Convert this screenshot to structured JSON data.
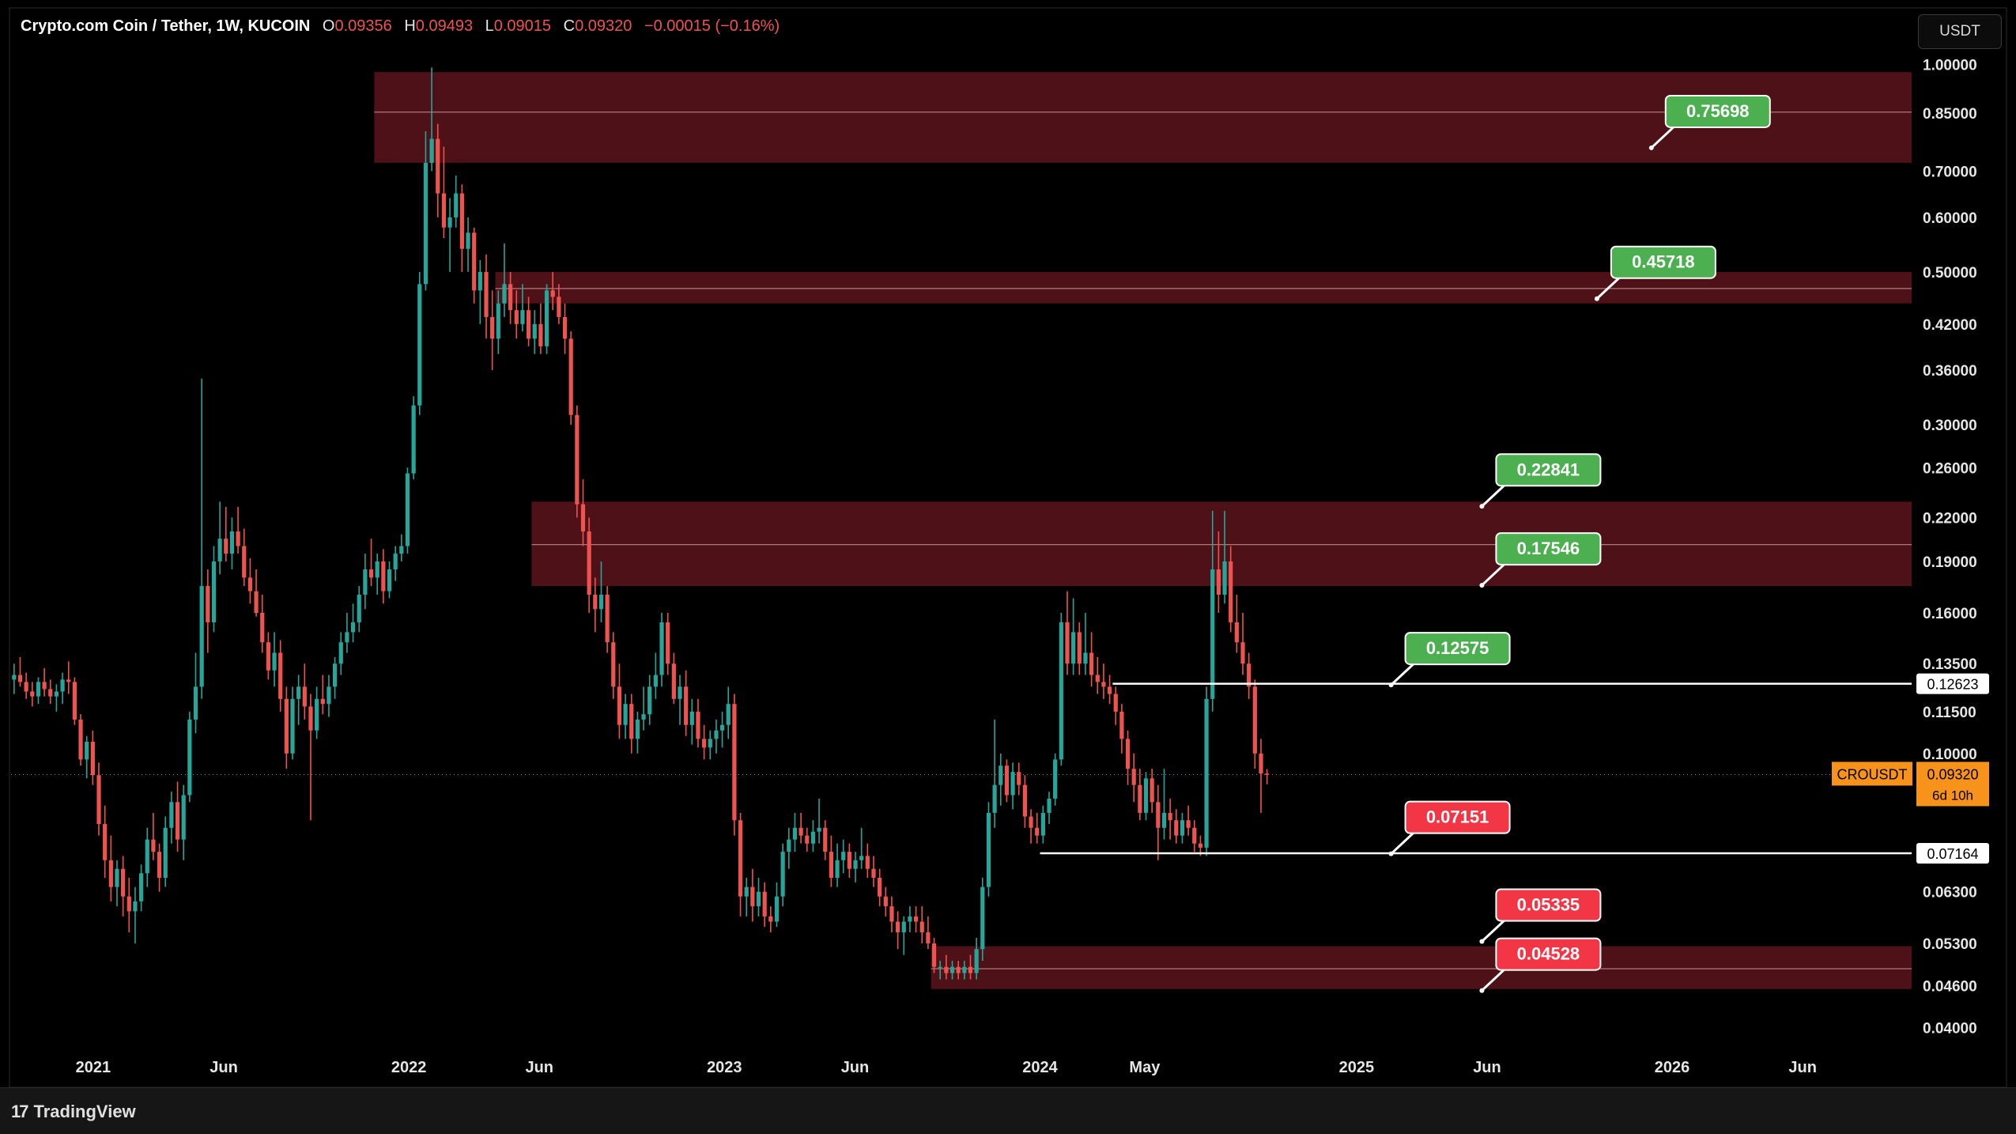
{
  "header": {
    "symbol": "Crypto.com Coin / Tether, 1W, KUCOIN",
    "open_label": "O",
    "open": "0.09356",
    "high_label": "H",
    "high": "0.09493",
    "low_label": "L",
    "low": "0.09015",
    "close_label": "C",
    "close": "0.09320",
    "change": "−0.00015 (−0.16%)"
  },
  "currency_button": "USDT",
  "footer": {
    "logo_mark": "17",
    "brand": "TradingView"
  },
  "colors": {
    "up": "#26a69a",
    "down": "#ef5350",
    "zone": "#4d1117",
    "zone_line": "#b07a7a",
    "green_label": "#4caf50",
    "red_label": "#f23645",
    "current": "#f7931a"
  },
  "chart_data": {
    "type": "candlestick",
    "title": "Crypto.com Coin / Tether, 1W, KUCOIN",
    "y_scale": "log",
    "ylim": [
      0.035,
      1.07
    ],
    "x_range": [
      "2020-09-28",
      "2026-10-05"
    ],
    "y_ticks": [
      "1.00000",
      "0.85000",
      "0.70000",
      "0.60000",
      "0.50000",
      "0.42000",
      "0.36000",
      "0.30000",
      "0.26000",
      "0.22000",
      "0.19000",
      "0.16000",
      "0.13500",
      "0.11500",
      "0.10000",
      "0.06300",
      "0.05300",
      "0.04600",
      "0.04000"
    ],
    "x_ticks": [
      {
        "label": "2021",
        "date": "2021-01-01"
      },
      {
        "label": "Jun",
        "date": "2021-06-01"
      },
      {
        "label": "2022",
        "date": "2022-01-01"
      },
      {
        "label": "Jun",
        "date": "2022-06-01"
      },
      {
        "label": "2023",
        "date": "2023-01-01"
      },
      {
        "label": "Jun",
        "date": "2023-06-01"
      },
      {
        "label": "2024",
        "date": "2024-01-01"
      },
      {
        "label": "May",
        "date": "2024-05-01"
      },
      {
        "label": "2025",
        "date": "2025-01-01"
      },
      {
        "label": "Jun",
        "date": "2025-06-01"
      },
      {
        "label": "2026",
        "date": "2026-01-01"
      },
      {
        "label": "Jun",
        "date": "2026-06-01"
      }
    ],
    "zones": [
      {
        "top": 0.975,
        "bottom": 0.72,
        "mid": 0.853,
        "start": "2021-11-22",
        "end": "2026-10-05"
      },
      {
        "top": 0.5,
        "bottom": 0.45,
        "mid": 0.473,
        "start": "2022-04-11",
        "end": "2026-10-05"
      },
      {
        "top": 0.232,
        "bottom": 0.175,
        "mid": 0.201,
        "start": "2022-05-23",
        "end": "2026-10-05"
      },
      {
        "top": 0.0525,
        "bottom": 0.0455,
        "mid": 0.0487,
        "start": "2023-08-28",
        "end": "2026-10-05"
      }
    ],
    "levels": [
      {
        "price": 0.12623,
        "label": "0.12623",
        "start": "2024-03-25",
        "end": "2026-10-05"
      },
      {
        "price": 0.07164,
        "label": "0.07164",
        "start": "2024-01-01",
        "end": "2026-10-05"
      }
    ],
    "callouts": [
      {
        "value": "0.75698",
        "color": "green",
        "date": "2025-12-08"
      },
      {
        "value": "0.45718",
        "color": "green",
        "date": "2025-10-06"
      },
      {
        "value": "0.22841",
        "color": "green",
        "date": "2025-05-26"
      },
      {
        "value": "0.17546",
        "color": "green",
        "date": "2025-05-26"
      },
      {
        "value": "0.12575",
        "color": "green",
        "date": "2025-02-10"
      },
      {
        "value": "0.07151",
        "color": "red",
        "date": "2025-02-10"
      },
      {
        "value": "0.05335",
        "color": "red",
        "date": "2025-05-26"
      },
      {
        "value": "0.04528",
        "color": "red",
        "date": "2025-05-26"
      }
    ],
    "current": {
      "symbol": "CROUSDT",
      "price": "0.09320",
      "countdown": "6d 10h",
      "value": 0.0932
    },
    "candle_start": "2020-09-28",
    "candles": [
      [
        0.128,
        0.135,
        0.122,
        0.13
      ],
      [
        0.13,
        0.138,
        0.125,
        0.127
      ],
      [
        0.127,
        0.131,
        0.12,
        0.123
      ],
      [
        0.123,
        0.127,
        0.117,
        0.121
      ],
      [
        0.121,
        0.129,
        0.118,
        0.127
      ],
      [
        0.127,
        0.133,
        0.121,
        0.124
      ],
      [
        0.124,
        0.128,
        0.118,
        0.121
      ],
      [
        0.121,
        0.126,
        0.115,
        0.123
      ],
      [
        0.123,
        0.131,
        0.118,
        0.128
      ],
      [
        0.128,
        0.136,
        0.122,
        0.127
      ],
      [
        0.127,
        0.129,
        0.11,
        0.112
      ],
      [
        0.112,
        0.114,
        0.096,
        0.098
      ],
      [
        0.098,
        0.106,
        0.092,
        0.104
      ],
      [
        0.104,
        0.108,
        0.09,
        0.093
      ],
      [
        0.093,
        0.097,
        0.076,
        0.079
      ],
      [
        0.079,
        0.084,
        0.066,
        0.07
      ],
      [
        0.07,
        0.076,
        0.061,
        0.064
      ],
      [
        0.064,
        0.07,
        0.06,
        0.068
      ],
      [
        0.068,
        0.071,
        0.058,
        0.062
      ],
      [
        0.062,
        0.066,
        0.055,
        0.059
      ],
      [
        0.059,
        0.064,
        0.053,
        0.061
      ],
      [
        0.061,
        0.069,
        0.059,
        0.067
      ],
      [
        0.067,
        0.078,
        0.064,
        0.075
      ],
      [
        0.075,
        0.082,
        0.07,
        0.072
      ],
      [
        0.072,
        0.074,
        0.063,
        0.066
      ],
      [
        0.066,
        0.081,
        0.064,
        0.078
      ],
      [
        0.078,
        0.088,
        0.074,
        0.085
      ],
      [
        0.085,
        0.091,
        0.072,
        0.075
      ],
      [
        0.075,
        0.09,
        0.07,
        0.087
      ],
      [
        0.087,
        0.115,
        0.085,
        0.112
      ],
      [
        0.112,
        0.14,
        0.107,
        0.125
      ],
      [
        0.125,
        0.35,
        0.12,
        0.175
      ],
      [
        0.175,
        0.185,
        0.14,
        0.155
      ],
      [
        0.155,
        0.2,
        0.15,
        0.19
      ],
      [
        0.19,
        0.232,
        0.182,
        0.205
      ],
      [
        0.205,
        0.228,
        0.19,
        0.195
      ],
      [
        0.195,
        0.22,
        0.185,
        0.21
      ],
      [
        0.21,
        0.228,
        0.195,
        0.2
      ],
      [
        0.2,
        0.212,
        0.175,
        0.18
      ],
      [
        0.18,
        0.192,
        0.165,
        0.172
      ],
      [
        0.172,
        0.185,
        0.158,
        0.16
      ],
      [
        0.16,
        0.17,
        0.14,
        0.145
      ],
      [
        0.145,
        0.15,
        0.128,
        0.132
      ],
      [
        0.132,
        0.15,
        0.125,
        0.14
      ],
      [
        0.14,
        0.146,
        0.115,
        0.12
      ],
      [
        0.12,
        0.125,
        0.095,
        0.1
      ],
      [
        0.1,
        0.125,
        0.098,
        0.12
      ],
      [
        0.12,
        0.13,
        0.11,
        0.125
      ],
      [
        0.125,
        0.135,
        0.112,
        0.117
      ],
      [
        0.117,
        0.122,
        0.08,
        0.108
      ],
      [
        0.108,
        0.125,
        0.105,
        0.12
      ],
      [
        0.12,
        0.13,
        0.114,
        0.118
      ],
      [
        0.118,
        0.13,
        0.113,
        0.125
      ],
      [
        0.125,
        0.138,
        0.12,
        0.135
      ],
      [
        0.135,
        0.15,
        0.13,
        0.145
      ],
      [
        0.145,
        0.16,
        0.14,
        0.15
      ],
      [
        0.15,
        0.165,
        0.145,
        0.155
      ],
      [
        0.155,
        0.175,
        0.15,
        0.17
      ],
      [
        0.17,
        0.195,
        0.162,
        0.185
      ],
      [
        0.185,
        0.205,
        0.175,
        0.18
      ],
      [
        0.18,
        0.195,
        0.17,
        0.19
      ],
      [
        0.19,
        0.198,
        0.165,
        0.172
      ],
      [
        0.172,
        0.19,
        0.168,
        0.185
      ],
      [
        0.185,
        0.2,
        0.178,
        0.195
      ],
      [
        0.195,
        0.208,
        0.19,
        0.2
      ],
      [
        0.2,
        0.26,
        0.195,
        0.255
      ],
      [
        0.255,
        0.33,
        0.25,
        0.32
      ],
      [
        0.32,
        0.5,
        0.31,
        0.48
      ],
      [
        0.48,
        0.8,
        0.47,
        0.72
      ],
      [
        0.72,
        0.99,
        0.7,
        0.78
      ],
      [
        0.78,
        0.82,
        0.6,
        0.65
      ],
      [
        0.65,
        0.76,
        0.56,
        0.58
      ],
      [
        0.58,
        0.64,
        0.5,
        0.6
      ],
      [
        0.6,
        0.69,
        0.58,
        0.65
      ],
      [
        0.65,
        0.67,
        0.5,
        0.54
      ],
      [
        0.54,
        0.6,
        0.5,
        0.57
      ],
      [
        0.57,
        0.58,
        0.45,
        0.47
      ],
      [
        0.47,
        0.52,
        0.42,
        0.5
      ],
      [
        0.5,
        0.53,
        0.4,
        0.43
      ],
      [
        0.43,
        0.47,
        0.36,
        0.4
      ],
      [
        0.4,
        0.47,
        0.38,
        0.45
      ],
      [
        0.45,
        0.55,
        0.43,
        0.48
      ],
      [
        0.48,
        0.5,
        0.42,
        0.44
      ],
      [
        0.44,
        0.47,
        0.4,
        0.42
      ],
      [
        0.42,
        0.48,
        0.41,
        0.44
      ],
      [
        0.44,
        0.46,
        0.39,
        0.4
      ],
      [
        0.4,
        0.44,
        0.38,
        0.42
      ],
      [
        0.42,
        0.45,
        0.38,
        0.39
      ],
      [
        0.39,
        0.48,
        0.38,
        0.47
      ],
      [
        0.47,
        0.5,
        0.44,
        0.46
      ],
      [
        0.46,
        0.48,
        0.42,
        0.43
      ],
      [
        0.43,
        0.45,
        0.38,
        0.4
      ],
      [
        0.4,
        0.41,
        0.3,
        0.31
      ],
      [
        0.31,
        0.32,
        0.22,
        0.23
      ],
      [
        0.23,
        0.25,
        0.2,
        0.21
      ],
      [
        0.21,
        0.22,
        0.16,
        0.17
      ],
      [
        0.17,
        0.18,
        0.15,
        0.162
      ],
      [
        0.162,
        0.19,
        0.155,
        0.17
      ],
      [
        0.17,
        0.175,
        0.14,
        0.145
      ],
      [
        0.145,
        0.15,
        0.12,
        0.125
      ],
      [
        0.125,
        0.135,
        0.105,
        0.11
      ],
      [
        0.11,
        0.122,
        0.105,
        0.118
      ],
      [
        0.118,
        0.122,
        0.1,
        0.105
      ],
      [
        0.105,
        0.115,
        0.1,
        0.112
      ],
      [
        0.112,
        0.125,
        0.108,
        0.114
      ],
      [
        0.114,
        0.13,
        0.11,
        0.125
      ],
      [
        0.125,
        0.14,
        0.12,
        0.13
      ],
      [
        0.13,
        0.16,
        0.125,
        0.155
      ],
      [
        0.155,
        0.16,
        0.13,
        0.135
      ],
      [
        0.135,
        0.14,
        0.118,
        0.12
      ],
      [
        0.12,
        0.13,
        0.11,
        0.125
      ],
      [
        0.125,
        0.132,
        0.106,
        0.11
      ],
      [
        0.11,
        0.12,
        0.103,
        0.115
      ],
      [
        0.115,
        0.12,
        0.102,
        0.105
      ],
      [
        0.105,
        0.11,
        0.098,
        0.102
      ],
      [
        0.102,
        0.108,
        0.098,
        0.105
      ],
      [
        0.105,
        0.112,
        0.1,
        0.108
      ],
      [
        0.108,
        0.115,
        0.102,
        0.11
      ],
      [
        0.11,
        0.125,
        0.105,
        0.118
      ],
      [
        0.118,
        0.122,
        0.076,
        0.08
      ],
      [
        0.08,
        0.082,
        0.058,
        0.062
      ],
      [
        0.062,
        0.066,
        0.058,
        0.064
      ],
      [
        0.064,
        0.068,
        0.057,
        0.06
      ],
      [
        0.06,
        0.066,
        0.058,
        0.063
      ],
      [
        0.063,
        0.065,
        0.056,
        0.058
      ],
      [
        0.058,
        0.06,
        0.055,
        0.057
      ],
      [
        0.057,
        0.065,
        0.056,
        0.062
      ],
      [
        0.062,
        0.074,
        0.06,
        0.072
      ],
      [
        0.072,
        0.078,
        0.068,
        0.075
      ],
      [
        0.075,
        0.082,
        0.072,
        0.078
      ],
      [
        0.078,
        0.082,
        0.074,
        0.076
      ],
      [
        0.076,
        0.078,
        0.072,
        0.074
      ],
      [
        0.074,
        0.08,
        0.072,
        0.077
      ],
      [
        0.077,
        0.086,
        0.074,
        0.078
      ],
      [
        0.078,
        0.08,
        0.07,
        0.072
      ],
      [
        0.072,
        0.076,
        0.064,
        0.066
      ],
      [
        0.066,
        0.074,
        0.064,
        0.07
      ],
      [
        0.07,
        0.075,
        0.067,
        0.072
      ],
      [
        0.072,
        0.074,
        0.066,
        0.068
      ],
      [
        0.068,
        0.072,
        0.065,
        0.07
      ],
      [
        0.07,
        0.078,
        0.068,
        0.071
      ],
      [
        0.071,
        0.074,
        0.066,
        0.068
      ],
      [
        0.068,
        0.071,
        0.064,
        0.066
      ],
      [
        0.066,
        0.068,
        0.06,
        0.062
      ],
      [
        0.062,
        0.064,
        0.058,
        0.06
      ],
      [
        0.06,
        0.062,
        0.055,
        0.057
      ],
      [
        0.057,
        0.059,
        0.052,
        0.055
      ],
      [
        0.055,
        0.058,
        0.051,
        0.057
      ],
      [
        0.057,
        0.06,
        0.055,
        0.058
      ],
      [
        0.058,
        0.06,
        0.055,
        0.057
      ],
      [
        0.057,
        0.06,
        0.053,
        0.055
      ],
      [
        0.055,
        0.058,
        0.052,
        0.053
      ],
      [
        0.053,
        0.054,
        0.048,
        0.049
      ],
      [
        0.049,
        0.05,
        0.047,
        0.049
      ],
      [
        0.049,
        0.051,
        0.047,
        0.048
      ],
      [
        0.048,
        0.05,
        0.047,
        0.049
      ],
      [
        0.049,
        0.05,
        0.047,
        0.048
      ],
      [
        0.048,
        0.05,
        0.047,
        0.049
      ],
      [
        0.049,
        0.051,
        0.047,
        0.048
      ],
      [
        0.048,
        0.054,
        0.047,
        0.052
      ],
      [
        0.052,
        0.066,
        0.05,
        0.064
      ],
      [
        0.064,
        0.085,
        0.062,
        0.082
      ],
      [
        0.082,
        0.112,
        0.078,
        0.09
      ],
      [
        0.09,
        0.1,
        0.084,
        0.096
      ],
      [
        0.096,
        0.098,
        0.085,
        0.087
      ],
      [
        0.087,
        0.097,
        0.083,
        0.094
      ],
      [
        0.094,
        0.097,
        0.087,
        0.09
      ],
      [
        0.09,
        0.093,
        0.078,
        0.081
      ],
      [
        0.081,
        0.083,
        0.074,
        0.078
      ],
      [
        0.078,
        0.082,
        0.074,
        0.076
      ],
      [
        0.076,
        0.084,
        0.074,
        0.082
      ],
      [
        0.082,
        0.088,
        0.079,
        0.086
      ],
      [
        0.086,
        0.1,
        0.084,
        0.098
      ],
      [
        0.098,
        0.16,
        0.096,
        0.155
      ],
      [
        0.155,
        0.172,
        0.13,
        0.135
      ],
      [
        0.135,
        0.168,
        0.13,
        0.15
      ],
      [
        0.15,
        0.155,
        0.13,
        0.135
      ],
      [
        0.135,
        0.16,
        0.13,
        0.14
      ],
      [
        0.14,
        0.15,
        0.125,
        0.13
      ],
      [
        0.13,
        0.138,
        0.122,
        0.127
      ],
      [
        0.127,
        0.135,
        0.12,
        0.125
      ],
      [
        0.125,
        0.13,
        0.118,
        0.122
      ],
      [
        0.122,
        0.125,
        0.11,
        0.115
      ],
      [
        0.115,
        0.118,
        0.1,
        0.105
      ],
      [
        0.105,
        0.108,
        0.09,
        0.095
      ],
      [
        0.095,
        0.1,
        0.085,
        0.09
      ],
      [
        0.09,
        0.095,
        0.08,
        0.082
      ],
      [
        0.082,
        0.094,
        0.08,
        0.092
      ],
      [
        0.092,
        0.095,
        0.082,
        0.085
      ],
      [
        0.085,
        0.09,
        0.07,
        0.078
      ],
      [
        0.078,
        0.095,
        0.075,
        0.082
      ],
      [
        0.082,
        0.086,
        0.075,
        0.08
      ],
      [
        0.08,
        0.083,
        0.074,
        0.076
      ],
      [
        0.076,
        0.082,
        0.074,
        0.08
      ],
      [
        0.08,
        0.084,
        0.076,
        0.078
      ],
      [
        0.078,
        0.08,
        0.072,
        0.074
      ],
      [
        0.074,
        0.076,
        0.071,
        0.073
      ],
      [
        0.073,
        0.125,
        0.071,
        0.12
      ],
      [
        0.12,
        0.225,
        0.115,
        0.185
      ],
      [
        0.185,
        0.21,
        0.16,
        0.17
      ],
      [
        0.17,
        0.225,
        0.165,
        0.19
      ],
      [
        0.19,
        0.2,
        0.15,
        0.155
      ],
      [
        0.155,
        0.17,
        0.14,
        0.145
      ],
      [
        0.145,
        0.16,
        0.13,
        0.135
      ],
      [
        0.135,
        0.14,
        0.12,
        0.125
      ],
      [
        0.125,
        0.128,
        0.095,
        0.1
      ],
      [
        0.1,
        0.105,
        0.082,
        0.0935
      ],
      [
        0.0935,
        0.0949,
        0.0902,
        0.0932
      ]
    ]
  }
}
